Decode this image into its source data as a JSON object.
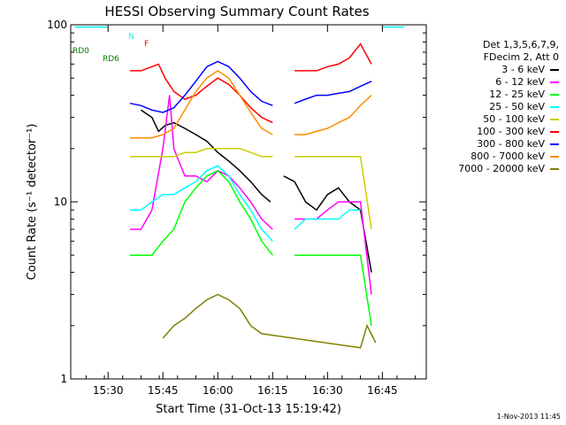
{
  "chart_data": {
    "type": "line",
    "title": "HESSI Observing Summary Count Rates",
    "xlabel": "Start Time (31-Oct-13 15:19:42)",
    "ylabel": "Count Rate (s⁻¹ detector⁻¹)",
    "yscale": "log",
    "xlim": [
      15.33,
      16.95
    ],
    "ylim": [
      1,
      100
    ],
    "x_ticks": [
      "15:30",
      "15:45",
      "16:00",
      "16:15",
      "16:30",
      "16:45"
    ],
    "x_tick_values": [
      15.5,
      15.75,
      16.0,
      16.25,
      16.5,
      16.75
    ],
    "y_ticks": [
      "1",
      "10",
      "100"
    ],
    "y_tick_values": [
      1,
      10,
      100
    ],
    "legend_header": [
      "Det 1,3,5,6,7,9,",
      "FDecim 2, Att 0"
    ],
    "legend_position": "right",
    "series": [
      {
        "name": "3 - 6 keV",
        "color": "#000000",
        "x": [
          15.5,
          15.55,
          15.6,
          15.65,
          15.7,
          15.73,
          15.76,
          15.8,
          15.85,
          15.9,
          15.95,
          16.0,
          16.05,
          16.1,
          16.15,
          16.2,
          16.24,
          16.27,
          16.3,
          16.35,
          16.4,
          16.45,
          16.5,
          16.55,
          16.6,
          16.65,
          16.7
        ],
        "values": [
          null,
          null,
          null,
          33,
          30,
          25,
          27,
          28,
          26,
          24,
          22,
          19,
          17,
          15,
          13,
          11,
          10,
          null,
          14,
          13,
          10,
          9,
          11,
          12,
          10,
          9,
          4
        ]
      },
      {
        "name": "6 - 12 keV",
        "color": "#ff00ff",
        "x": [
          15.5,
          15.55,
          15.6,
          15.65,
          15.7,
          15.75,
          15.78,
          15.8,
          15.85,
          15.9,
          15.95,
          16.0,
          16.05,
          16.1,
          16.15,
          16.2,
          16.25,
          16.3,
          16.35,
          16.4,
          16.45,
          16.5,
          16.55,
          16.6,
          16.65,
          16.7
        ],
        "values": [
          null,
          null,
          7,
          7,
          9,
          20,
          40,
          20,
          14,
          14,
          13,
          15,
          14,
          12,
          10,
          8,
          7,
          null,
          8,
          8,
          8,
          9,
          10,
          10,
          10,
          3
        ]
      },
      {
        "name": "12 - 25 keV",
        "color": "#00ff00",
        "x": [
          15.5,
          15.55,
          15.6,
          15.65,
          15.7,
          15.75,
          15.8,
          15.85,
          15.9,
          15.95,
          16.0,
          16.05,
          16.1,
          16.15,
          16.2,
          16.25,
          16.3,
          16.35,
          16.4,
          16.45,
          16.5,
          16.55,
          16.6,
          16.65,
          16.7
        ],
        "values": [
          null,
          null,
          5,
          5,
          5,
          6,
          7,
          10,
          12,
          14,
          15,
          13,
          10,
          8,
          6,
          5,
          null,
          5,
          5,
          5,
          5,
          5,
          5,
          5,
          2
        ]
      },
      {
        "name": "25 - 50 keV",
        "color": "#00ffff",
        "x": [
          15.35,
          15.5,
          15.55,
          15.6,
          15.65,
          15.7,
          15.75,
          15.8,
          15.85,
          15.9,
          15.95,
          16.0,
          16.05,
          16.1,
          16.15,
          16.2,
          16.25,
          16.3,
          16.35,
          16.4,
          16.45,
          16.5,
          16.55,
          16.6,
          16.65,
          16.7,
          16.75,
          16.85
        ],
        "values": [
          97,
          97,
          null,
          9,
          9,
          10,
          11,
          11,
          12,
          13,
          15,
          16,
          14,
          11,
          9,
          7,
          6,
          null,
          7,
          8,
          8,
          8,
          8,
          9,
          9,
          null,
          97,
          97
        ]
      },
      {
        "name": "50 - 100 keV",
        "color": "#cccc00",
        "x": [
          15.5,
          15.55,
          15.6,
          15.65,
          15.7,
          15.75,
          15.8,
          15.85,
          15.9,
          15.95,
          16.0,
          16.05,
          16.1,
          16.15,
          16.2,
          16.25,
          16.3,
          16.35,
          16.4,
          16.45,
          16.5,
          16.55,
          16.6,
          16.65,
          16.7
        ],
        "values": [
          null,
          null,
          18,
          18,
          18,
          18,
          18,
          19,
          19,
          20,
          20,
          20,
          20,
          19,
          18,
          18,
          null,
          18,
          18,
          18,
          18,
          18,
          18,
          18,
          7
        ]
      },
      {
        "name": "100 - 300 keV",
        "color": "#ff0000",
        "x": [
          15.5,
          15.55,
          15.6,
          15.65,
          15.7,
          15.73,
          15.76,
          15.8,
          15.85,
          15.9,
          15.95,
          16.0,
          16.05,
          16.1,
          16.15,
          16.2,
          16.25,
          16.3,
          16.35,
          16.4,
          16.45,
          16.5,
          16.55,
          16.6,
          16.65,
          16.7
        ],
        "values": [
          null,
          null,
          55,
          55,
          58,
          60,
          50,
          42,
          38,
          40,
          45,
          50,
          46,
          40,
          34,
          30,
          28,
          null,
          55,
          55,
          55,
          58,
          60,
          65,
          78,
          60
        ]
      },
      {
        "name": "300 - 800 keV",
        "color": "#0000ff",
        "x": [
          15.5,
          15.55,
          15.6,
          15.65,
          15.7,
          15.75,
          15.8,
          15.85,
          15.9,
          15.95,
          16.0,
          16.05,
          16.1,
          16.15,
          16.2,
          16.25,
          16.3,
          16.35,
          16.4,
          16.45,
          16.5,
          16.55,
          16.6,
          16.65,
          16.7
        ],
        "values": [
          null,
          null,
          36,
          35,
          33,
          32,
          34,
          40,
          48,
          58,
          62,
          58,
          50,
          42,
          37,
          35,
          null,
          36,
          38,
          40,
          40,
          41,
          42,
          45,
          48
        ]
      },
      {
        "name": "800 - 7000 keV",
        "color": "#ff8c00",
        "x": [
          15.5,
          15.55,
          15.6,
          15.65,
          15.7,
          15.75,
          15.8,
          15.85,
          15.9,
          15.95,
          16.0,
          16.05,
          16.1,
          16.15,
          16.2,
          16.25,
          16.3,
          16.35,
          16.4,
          16.45,
          16.5,
          16.55,
          16.6,
          16.65,
          16.7
        ],
        "values": [
          null,
          null,
          23,
          23,
          23,
          24,
          26,
          33,
          42,
          50,
          55,
          50,
          40,
          32,
          26,
          24,
          null,
          24,
          24,
          25,
          26,
          28,
          30,
          35,
          40
        ]
      },
      {
        "name": "7000 - 20000 keV",
        "color": "#808000",
        "x": [
          15.75,
          15.8,
          15.85,
          15.9,
          15.95,
          16.0,
          16.05,
          16.1,
          16.15,
          16.2,
          16.65,
          16.68,
          16.72
        ],
        "values": [
          1.7,
          2.0,
          2.2,
          2.5,
          2.8,
          3.0,
          2.8,
          2.5,
          2.0,
          1.8,
          1.5,
          2.0,
          1.6
        ]
      }
    ],
    "annotations": [
      "N",
      "F",
      "RD0",
      "RD6"
    ]
  },
  "footer": {
    "timestamp": "1-Nov-2013 11:45"
  }
}
